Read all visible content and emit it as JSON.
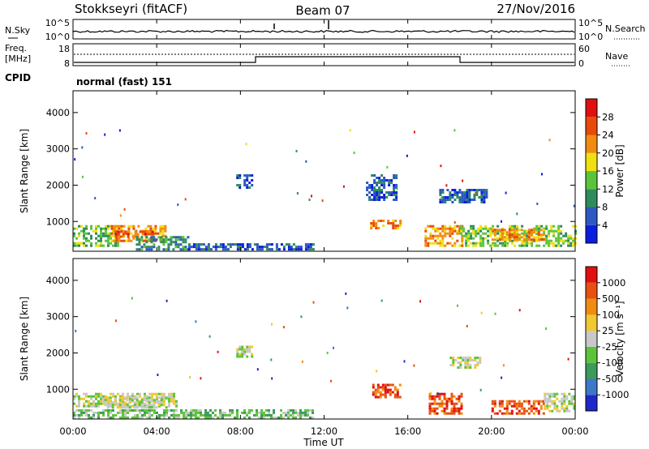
{
  "header": {
    "radar": "Stokkseyri (fitACF)",
    "beam": "Beam 07",
    "date": "27/Nov/2016"
  },
  "noise_panel": {
    "left_label": "N.Sky",
    "right_label": "N.Search",
    "ticks_left": [
      "10^5",
      "10^0"
    ],
    "ticks_right": [
      "10^5",
      "10^0"
    ]
  },
  "freq_panel": {
    "left_label_1": "Freq.",
    "left_label_2": "[MHz]",
    "right_label": "Nave",
    "ticks_left": [
      "18",
      "8"
    ],
    "ticks_right": [
      "60",
      "0"
    ]
  },
  "cpid": {
    "label": "CPID",
    "value": "normal (fast) 151"
  },
  "chart_data": [
    {
      "type": "heatmap",
      "name": "power",
      "ylabel": "Slant Range [km]",
      "xlim": [
        0,
        24
      ],
      "ylim": [
        180,
        4600
      ],
      "yticks": [
        "1000",
        "2000",
        "3000",
        "4000"
      ],
      "colorbar": {
        "label": "Power [dB]",
        "ticks": [
          "4",
          "8",
          "12",
          "16",
          "20",
          "24",
          "28"
        ],
        "colors": [
          "#0a1ee0",
          "#2c58c4",
          "#2e8c5c",
          "#5cc43a",
          "#f0e010",
          "#f08c10",
          "#e84a0a",
          "#e01010"
        ]
      },
      "regions": [
        {
          "t": [
            0.0,
            2.1
          ],
          "r": [
            300,
            900
          ],
          "level": 3
        },
        {
          "t": [
            1.8,
            4.4
          ],
          "r": [
            450,
            900
          ],
          "level": 5
        },
        {
          "t": [
            2.0,
            3.8
          ],
          "r": [
            550,
            750
          ],
          "level": 6
        },
        {
          "t": [
            3.0,
            5.5
          ],
          "r": [
            250,
            600
          ],
          "level": 2
        },
        {
          "t": [
            5.5,
            11.5
          ],
          "r": [
            200,
            400
          ],
          "level": 1
        },
        {
          "t": [
            7.8,
            8.6
          ],
          "r": [
            1950,
            2300
          ],
          "level": 1
        },
        {
          "t": [
            14.2,
            15.6
          ],
          "r": [
            800,
            1050
          ],
          "level": 5
        },
        {
          "t": [
            14.0,
            15.5
          ],
          "r": [
            1600,
            2300
          ],
          "level": 1
        },
        {
          "t": [
            16.8,
            18.6
          ],
          "r": [
            350,
            900
          ],
          "level": 5
        },
        {
          "t": [
            17.5,
            19.8
          ],
          "r": [
            1500,
            1900
          ],
          "level": 1
        },
        {
          "t": [
            18.5,
            24.0
          ],
          "r": [
            300,
            900
          ],
          "level": 3
        },
        {
          "t": [
            20.0,
            22.5
          ],
          "r": [
            500,
            800
          ],
          "level": 5
        }
      ]
    },
    {
      "type": "heatmap",
      "name": "velocity",
      "ylabel": "Slant Range [km]",
      "xlim": [
        0,
        24
      ],
      "ylim": [
        180,
        4600
      ],
      "yticks": [
        "1000",
        "2000",
        "3000",
        "4000"
      ],
      "colorbar": {
        "label": "Velocity [m s⁻¹]",
        "ticks": [
          "1000",
          "500",
          "100",
          "25",
          "-25",
          "-100",
          "-500",
          "-1000"
        ],
        "colors": [
          "#1e28c8",
          "#3c78c8",
          "#3c9a5a",
          "#5cc43a",
          "#c8c8c8",
          "#f0c830",
          "#f08c10",
          "#e85010",
          "#e01010"
        ]
      },
      "regions": [
        {
          "t": [
            0.0,
            5.0
          ],
          "r": [
            500,
            900
          ],
          "level": 4
        },
        {
          "t": [
            0.0,
            11.5
          ],
          "r": [
            200,
            450
          ],
          "level": 3
        },
        {
          "t": [
            1.5,
            4.5
          ],
          "r": [
            500,
            800
          ],
          "level": 4
        },
        {
          "t": [
            7.8,
            8.6
          ],
          "r": [
            1900,
            2200
          ],
          "level": 4
        },
        {
          "t": [
            14.3,
            15.6
          ],
          "r": [
            750,
            1150
          ],
          "level": 7
        },
        {
          "t": [
            17.0,
            18.6
          ],
          "r": [
            350,
            900
          ],
          "level": 7
        },
        {
          "t": [
            18.0,
            19.5
          ],
          "r": [
            1600,
            1900
          ],
          "level": 4
        },
        {
          "t": [
            20.0,
            22.5
          ],
          "r": [
            300,
            700
          ],
          "level": 7
        },
        {
          "t": [
            22.5,
            24.0
          ],
          "r": [
            400,
            900
          ],
          "level": 4
        }
      ]
    }
  ],
  "xaxis": {
    "label": "Time UT",
    "ticks": [
      "00:00",
      "04:00",
      "08:00",
      "12:00",
      "16:00",
      "20:00",
      "00:00"
    ]
  }
}
